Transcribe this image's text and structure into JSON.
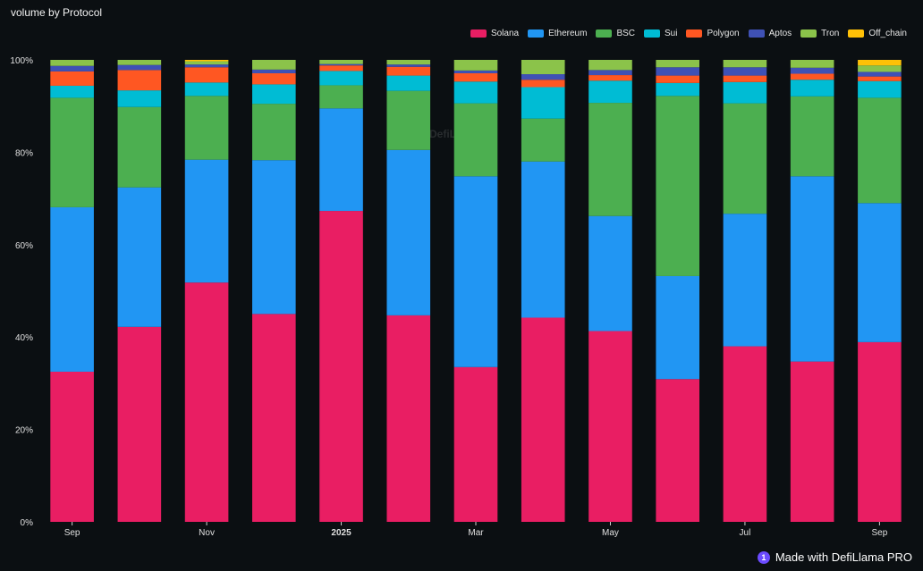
{
  "header": {
    "title": "volume by Protocol"
  },
  "watermark": "DefiLlama",
  "footer": {
    "label": "Made with DefiLlama PRO",
    "icon": "llama-logo-icon"
  },
  "chart_data": {
    "type": "bar",
    "stacked": true,
    "normalized": true,
    "title": "volume by Protocol",
    "xlabel": "",
    "ylabel": "",
    "ylim": [
      0,
      100
    ],
    "y_ticks": [
      "0%",
      "20%",
      "40%",
      "60%",
      "80%",
      "100%"
    ],
    "x_tick_labels": [
      {
        "index": 0,
        "label": "Sep"
      },
      {
        "index": 2,
        "label": "Nov"
      },
      {
        "index": 4,
        "label": "2025"
      },
      {
        "index": 6,
        "label": "Mar"
      },
      {
        "index": 8,
        "label": "May"
      },
      {
        "index": 10,
        "label": "Jul"
      },
      {
        "index": 12,
        "label": "Sep"
      }
    ],
    "categories": [
      "2024-09",
      "2024-10",
      "2024-11",
      "2024-12",
      "2025-01",
      "2025-02",
      "2025-03",
      "2025-04",
      "2025-05",
      "2025-06",
      "2025-07",
      "2025-08",
      "2025-09"
    ],
    "series": [
      {
        "name": "Solana",
        "color": "#e91e63",
        "values": [
          32.5,
          42.2,
          51.8,
          45.0,
          67.3,
          44.7,
          33.5,
          44.2,
          41.3,
          30.9,
          38.0,
          34.7,
          38.9
        ]
      },
      {
        "name": "Ethereum",
        "color": "#2196f3",
        "values": [
          35.6,
          30.2,
          26.6,
          33.3,
          22.2,
          35.8,
          41.3,
          33.8,
          24.9,
          22.3,
          28.7,
          40.1,
          30.1
        ]
      },
      {
        "name": "BSC",
        "color": "#4caf50",
        "values": [
          23.7,
          17.4,
          13.8,
          12.2,
          5.0,
          12.8,
          15.8,
          9.3,
          24.5,
          39.0,
          23.9,
          17.3,
          22.8
        ]
      },
      {
        "name": "Sui",
        "color": "#00bcd4",
        "values": [
          2.6,
          3.6,
          2.9,
          4.2,
          3.1,
          3.3,
          4.7,
          6.8,
          4.8,
          2.8,
          4.6,
          3.6,
          3.6
        ]
      },
      {
        "name": "Polygon",
        "color": "#ff5722",
        "values": [
          3.1,
          4.4,
          3.3,
          2.4,
          1.2,
          1.9,
          1.8,
          1.6,
          1.2,
          1.6,
          1.4,
          1.3,
          1.0
        ]
      },
      {
        "name": "Aptos",
        "color": "#3f51b5",
        "values": [
          1.2,
          1.1,
          0.6,
          0.8,
          0.3,
          0.5,
          0.6,
          1.2,
          1.1,
          1.8,
          1.8,
          1.3,
          1.0
        ]
      },
      {
        "name": "Tron",
        "color": "#8bc34a",
        "values": [
          1.3,
          1.1,
          0.7,
          2.1,
          0.9,
          1.0,
          2.3,
          3.1,
          2.2,
          1.6,
          1.6,
          1.7,
          1.4
        ]
      },
      {
        "name": "Off_chain",
        "color": "#ffc107",
        "values": [
          0.0,
          0.0,
          0.3,
          0.0,
          0.0,
          0.0,
          0.0,
          0.0,
          0.0,
          0.0,
          0.0,
          0.0,
          1.2
        ]
      }
    ],
    "legend_position": "top-right"
  }
}
